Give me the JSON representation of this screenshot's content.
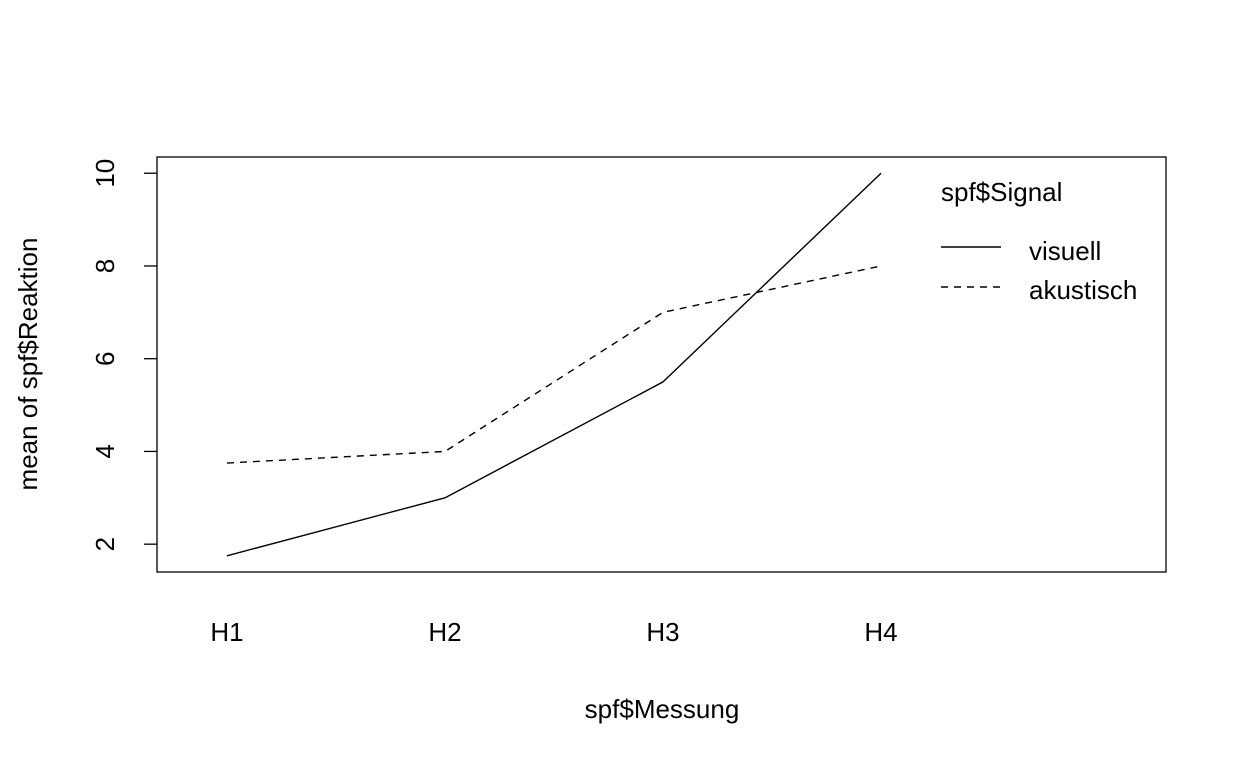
{
  "chart_data": {
    "type": "line",
    "categories": [
      "H1",
      "H2",
      "H3",
      "H4"
    ],
    "series": [
      {
        "name": "visuell",
        "values": [
          1.75,
          3.0,
          5.5,
          10.0
        ],
        "line_style": "solid"
      },
      {
        "name": "akustisch",
        "values": [
          3.75,
          4.0,
          7.0,
          8.0
        ],
        "line_style": "dashed"
      }
    ],
    "xlabel": "spf$Messung",
    "ylabel": "mean of  spf$Reaktion",
    "y_ticks": [
      2,
      4,
      6,
      8,
      10
    ],
    "y_tick_labels": [
      "2",
      "4",
      "6",
      "8",
      "10"
    ],
    "ylim": [
      1.4,
      10.35
    ],
    "legend_title": "spf$Signal",
    "legend_position": "top-right",
    "grid": false,
    "line_color": "#000000"
  }
}
